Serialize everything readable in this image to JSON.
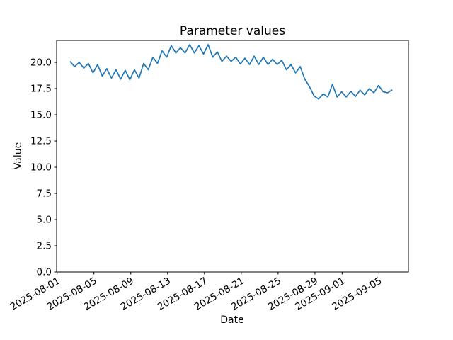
{
  "figure": {
    "title": "Parameter values",
    "xlabel": "Date",
    "ylabel": "Value"
  },
  "chart_data": {
    "type": "line",
    "title": "Parameter values",
    "xlabel": "Date",
    "ylabel": "Value",
    "grid": false,
    "legend": "none",
    "background_color": "#ffffff",
    "line_color": "#1f77b4",
    "axis_color": "#000000",
    "x_start_date": "2025-08-02",
    "x_end_date": "2025-09-06",
    "x_step_hours": 12,
    "values": [
      20.1,
      19.6,
      20.0,
      19.45,
      19.9,
      19.0,
      19.8,
      18.7,
      19.4,
      18.5,
      19.3,
      18.4,
      19.25,
      18.35,
      19.3,
      18.5,
      19.9,
      19.3,
      20.5,
      19.9,
      21.1,
      20.5,
      21.6,
      20.9,
      21.4,
      20.9,
      21.7,
      20.9,
      21.6,
      20.8,
      21.7,
      20.5,
      21.0,
      20.1,
      20.6,
      20.1,
      20.5,
      19.85,
      20.4,
      19.8,
      20.6,
      19.8,
      20.5,
      19.8,
      20.3,
      19.8,
      20.2,
      19.3,
      19.8,
      19.0,
      19.6,
      18.4,
      17.7,
      16.8,
      16.5,
      17.0,
      16.7,
      17.9,
      16.7,
      17.2,
      16.7,
      17.25,
      16.75,
      17.35,
      16.9,
      17.5,
      17.1,
      17.8,
      17.2,
      17.1,
      17.4
    ],
    "ylim": [
      0,
      22.1
    ],
    "y_tick_values": [
      0,
      2.5,
      5,
      7.5,
      10,
      12.5,
      15,
      17.5,
      20
    ],
    "y_tick_labels": [
      "0.0",
      "2.5",
      "5.0",
      "7.5",
      "10.0",
      "12.5",
      "15.0",
      "17.5",
      "20.0"
    ],
    "xlim_days_from_start": [
      -1.45,
      36.75
    ],
    "x_ticks": [
      {
        "label": "2025-08-01",
        "day": -1.4
      },
      {
        "label": "2025-08-05",
        "day": 2.6
      },
      {
        "label": "2025-08-09",
        "day": 6.6
      },
      {
        "label": "2025-08-13",
        "day": 10.6
      },
      {
        "label": "2025-08-17",
        "day": 14.6
      },
      {
        "label": "2025-08-21",
        "day": 18.6
      },
      {
        "label": "2025-08-25",
        "day": 22.6
      },
      {
        "label": "2025-08-29",
        "day": 26.6
      },
      {
        "label": "2025-09-01",
        "day": 29.55
      },
      {
        "label": "2025-09-05",
        "day": 33.55
      }
    ],
    "x_tick_rotation_deg": 30
  }
}
